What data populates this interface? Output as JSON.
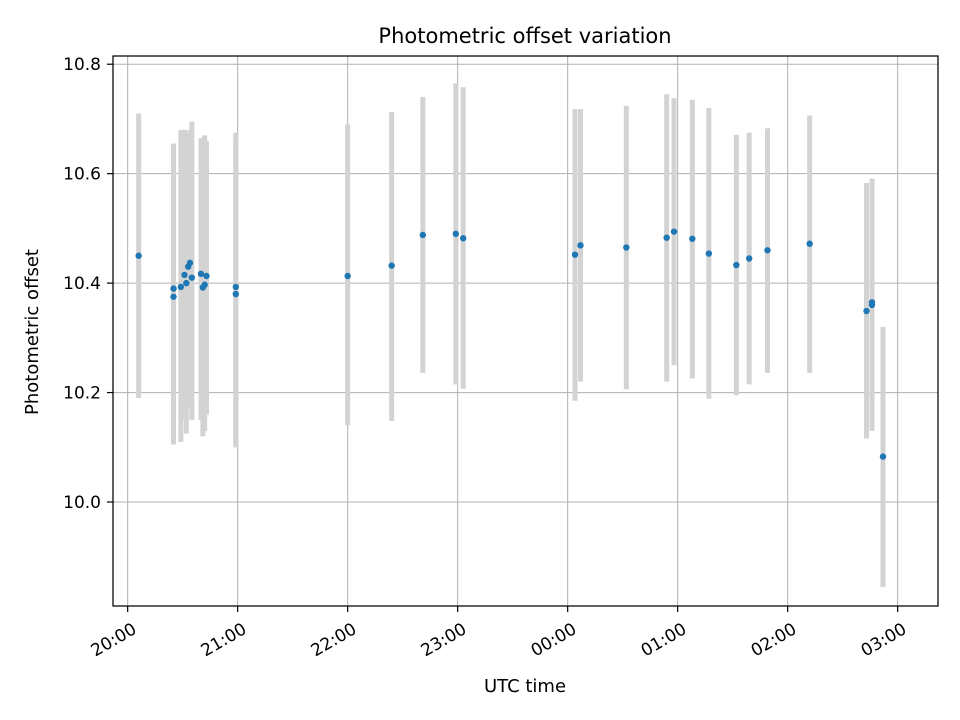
{
  "chart_data": {
    "type": "scatter",
    "title": "Photometric offset variation",
    "xlabel": "UTC time",
    "ylabel": "Photometric offset",
    "ylim": [
      9.81,
      10.815
    ],
    "xlim": [
      "19:52",
      "03:22"
    ],
    "grid": true,
    "x_ticks": [
      "20:00",
      "21:00",
      "22:00",
      "23:00",
      "00:00",
      "01:00",
      "02:00",
      "03:00"
    ],
    "y_ticks": [
      "10.0",
      "10.2",
      "10.4",
      "10.6",
      "10.8"
    ],
    "colors": {
      "points": "#1f77b4",
      "error_bars": "#d3d3d3",
      "grid": "#b0b0b0"
    },
    "series": [
      {
        "points": [
          {
            "x": "20:06",
            "y": 10.45,
            "low": 10.19,
            "high": 10.71
          },
          {
            "x": "20:25",
            "y": 10.39,
            "low": 10.105,
            "high": 10.655
          },
          {
            "x": "20:25",
            "y": 10.375,
            "low": 10.105,
            "high": 10.645
          },
          {
            "x": "20:29",
            "y": 10.393,
            "low": 10.11,
            "high": 10.68
          },
          {
            "x": "20:31",
            "y": 10.415,
            "low": 10.15,
            "high": 10.68
          },
          {
            "x": "20:32",
            "y": 10.4,
            "low": 10.125,
            "high": 10.675
          },
          {
            "x": "20:33",
            "y": 10.43,
            "low": 10.17,
            "high": 10.67
          },
          {
            "x": "20:34",
            "y": 10.437,
            "low": 10.18,
            "high": 10.68
          },
          {
            "x": "20:35",
            "y": 10.41,
            "low": 10.15,
            "high": 10.695
          },
          {
            "x": "20:40",
            "y": 10.417,
            "low": 10.15,
            "high": 10.665
          },
          {
            "x": "20:41",
            "y": 10.392,
            "low": 10.12,
            "high": 10.665
          },
          {
            "x": "20:42",
            "y": 10.397,
            "low": 10.13,
            "high": 10.67
          },
          {
            "x": "20:43",
            "y": 10.413,
            "low": 10.16,
            "high": 10.66
          },
          {
            "x": "20:59",
            "y": 10.393,
            "low": 10.1,
            "high": 10.675
          },
          {
            "x": "20:59",
            "y": 10.38,
            "low": 10.1,
            "high": 10.665
          },
          {
            "x": "22:00",
            "y": 10.413,
            "low": 10.14,
            "high": 10.69
          },
          {
            "x": "22:24",
            "y": 10.432,
            "low": 10.148,
            "high": 10.713
          },
          {
            "x": "22:41",
            "y": 10.488,
            "low": 10.236,
            "high": 10.74
          },
          {
            "x": "22:59",
            "y": 10.49,
            "low": 10.215,
            "high": 10.765
          },
          {
            "x": "23:03",
            "y": 10.482,
            "low": 10.207,
            "high": 10.758
          },
          {
            "x": "00:04",
            "y": 10.452,
            "low": 10.185,
            "high": 10.718
          },
          {
            "x": "00:07",
            "y": 10.469,
            "low": 10.22,
            "high": 10.718
          },
          {
            "x": "00:32",
            "y": 10.465,
            "low": 10.206,
            "high": 10.724
          },
          {
            "x": "00:54",
            "y": 10.483,
            "low": 10.22,
            "high": 10.745
          },
          {
            "x": "00:58",
            "y": 10.494,
            "low": 10.25,
            "high": 10.738
          },
          {
            "x": "01:08",
            "y": 10.481,
            "low": 10.226,
            "high": 10.735
          },
          {
            "x": "01:17",
            "y": 10.454,
            "low": 10.189,
            "high": 10.72
          },
          {
            "x": "01:32",
            "y": 10.433,
            "low": 10.195,
            "high": 10.671
          },
          {
            "x": "01:39",
            "y": 10.445,
            "low": 10.215,
            "high": 10.675
          },
          {
            "x": "01:49",
            "y": 10.46,
            "low": 10.236,
            "high": 10.683
          },
          {
            "x": "02:12",
            "y": 10.472,
            "low": 10.236,
            "high": 10.706
          },
          {
            "x": "02:43",
            "y": 10.349,
            "low": 10.116,
            "high": 10.583
          },
          {
            "x": "02:46",
            "y": 10.36,
            "low": 10.13,
            "high": 10.591
          },
          {
            "x": "02:46",
            "y": 10.365,
            "low": 10.14,
            "high": 10.59
          },
          {
            "x": "02:52",
            "y": 10.083,
            "low": 9.845,
            "high": 10.32
          }
        ]
      }
    ]
  }
}
